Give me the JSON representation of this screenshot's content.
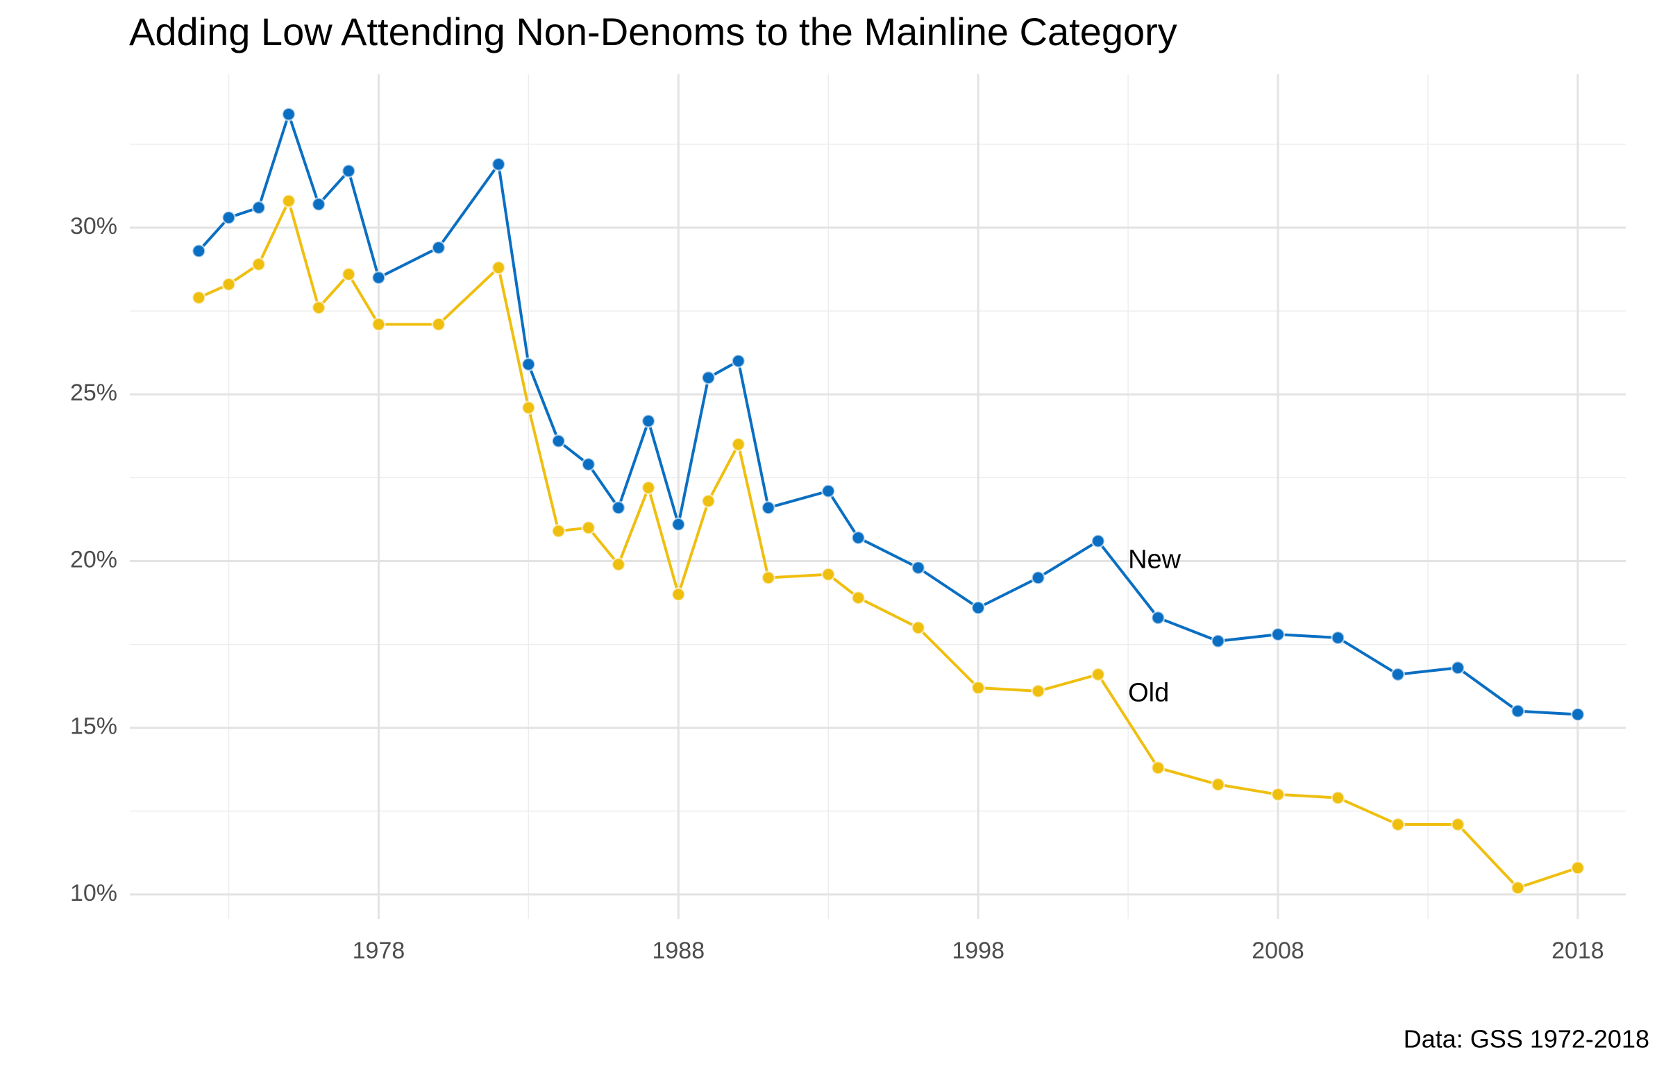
{
  "chart_data": {
    "type": "line",
    "title": "Adding Low Attending Non-Denoms to the Mainline Category",
    "caption": "Data: GSS 1972-2018",
    "x": [
      1972,
      1973,
      1974,
      1975,
      1976,
      1977,
      1978,
      1980,
      1982,
      1983,
      1984,
      1985,
      1986,
      1987,
      1988,
      1989,
      1990,
      1991,
      1993,
      1994,
      1996,
      1998,
      2000,
      2002,
      2004,
      2006,
      2008,
      2010,
      2012,
      2014,
      2016,
      2018
    ],
    "series": [
      {
        "name": "New",
        "color": "#0a6fc2",
        "values": [
          29.3,
          30.3,
          30.6,
          33.4,
          30.7,
          31.7,
          28.5,
          29.4,
          31.9,
          25.9,
          23.6,
          22.9,
          21.6,
          24.2,
          21.1,
          25.5,
          26.0,
          21.6,
          22.1,
          20.7,
          19.8,
          18.6,
          19.5,
          20.6,
          18.3,
          17.6,
          17.8,
          17.7,
          16.6,
          16.8,
          15.5,
          15.4
        ]
      },
      {
        "name": "Old",
        "color": "#efbf10",
        "values": [
          27.9,
          28.3,
          28.9,
          30.8,
          27.6,
          28.6,
          27.1,
          27.1,
          28.8,
          24.6,
          20.9,
          21.0,
          19.9,
          22.2,
          19.0,
          21.8,
          23.5,
          19.5,
          19.6,
          18.9,
          18.0,
          16.2,
          16.1,
          16.6,
          13.8,
          13.3,
          13.0,
          12.9,
          12.1,
          12.1,
          10.2,
          10.8
        ]
      }
    ],
    "label_positions": [
      {
        "x": 2003,
        "y": 20.0
      },
      {
        "x": 2003,
        "y": 16.0
      }
    ],
    "xlim": [
      1969.7,
      2019.6
    ],
    "ylim": [
      9.27,
      34.6
    ],
    "xticks": [
      1978,
      1988,
      1998,
      2008,
      2018
    ],
    "xminorticks": [
      1973,
      1983,
      1993,
      2003,
      2013
    ],
    "yticks": [
      {
        "value": 10,
        "label": "10%"
      },
      {
        "value": 15,
        "label": "15%"
      },
      {
        "value": 20,
        "label": "20%"
      },
      {
        "value": 25,
        "label": "25%"
      },
      {
        "value": 30,
        "label": "30%"
      }
    ],
    "yminorticks": [
      12.5,
      17.5,
      22.5,
      27.5,
      32.5
    ],
    "grid": true
  }
}
